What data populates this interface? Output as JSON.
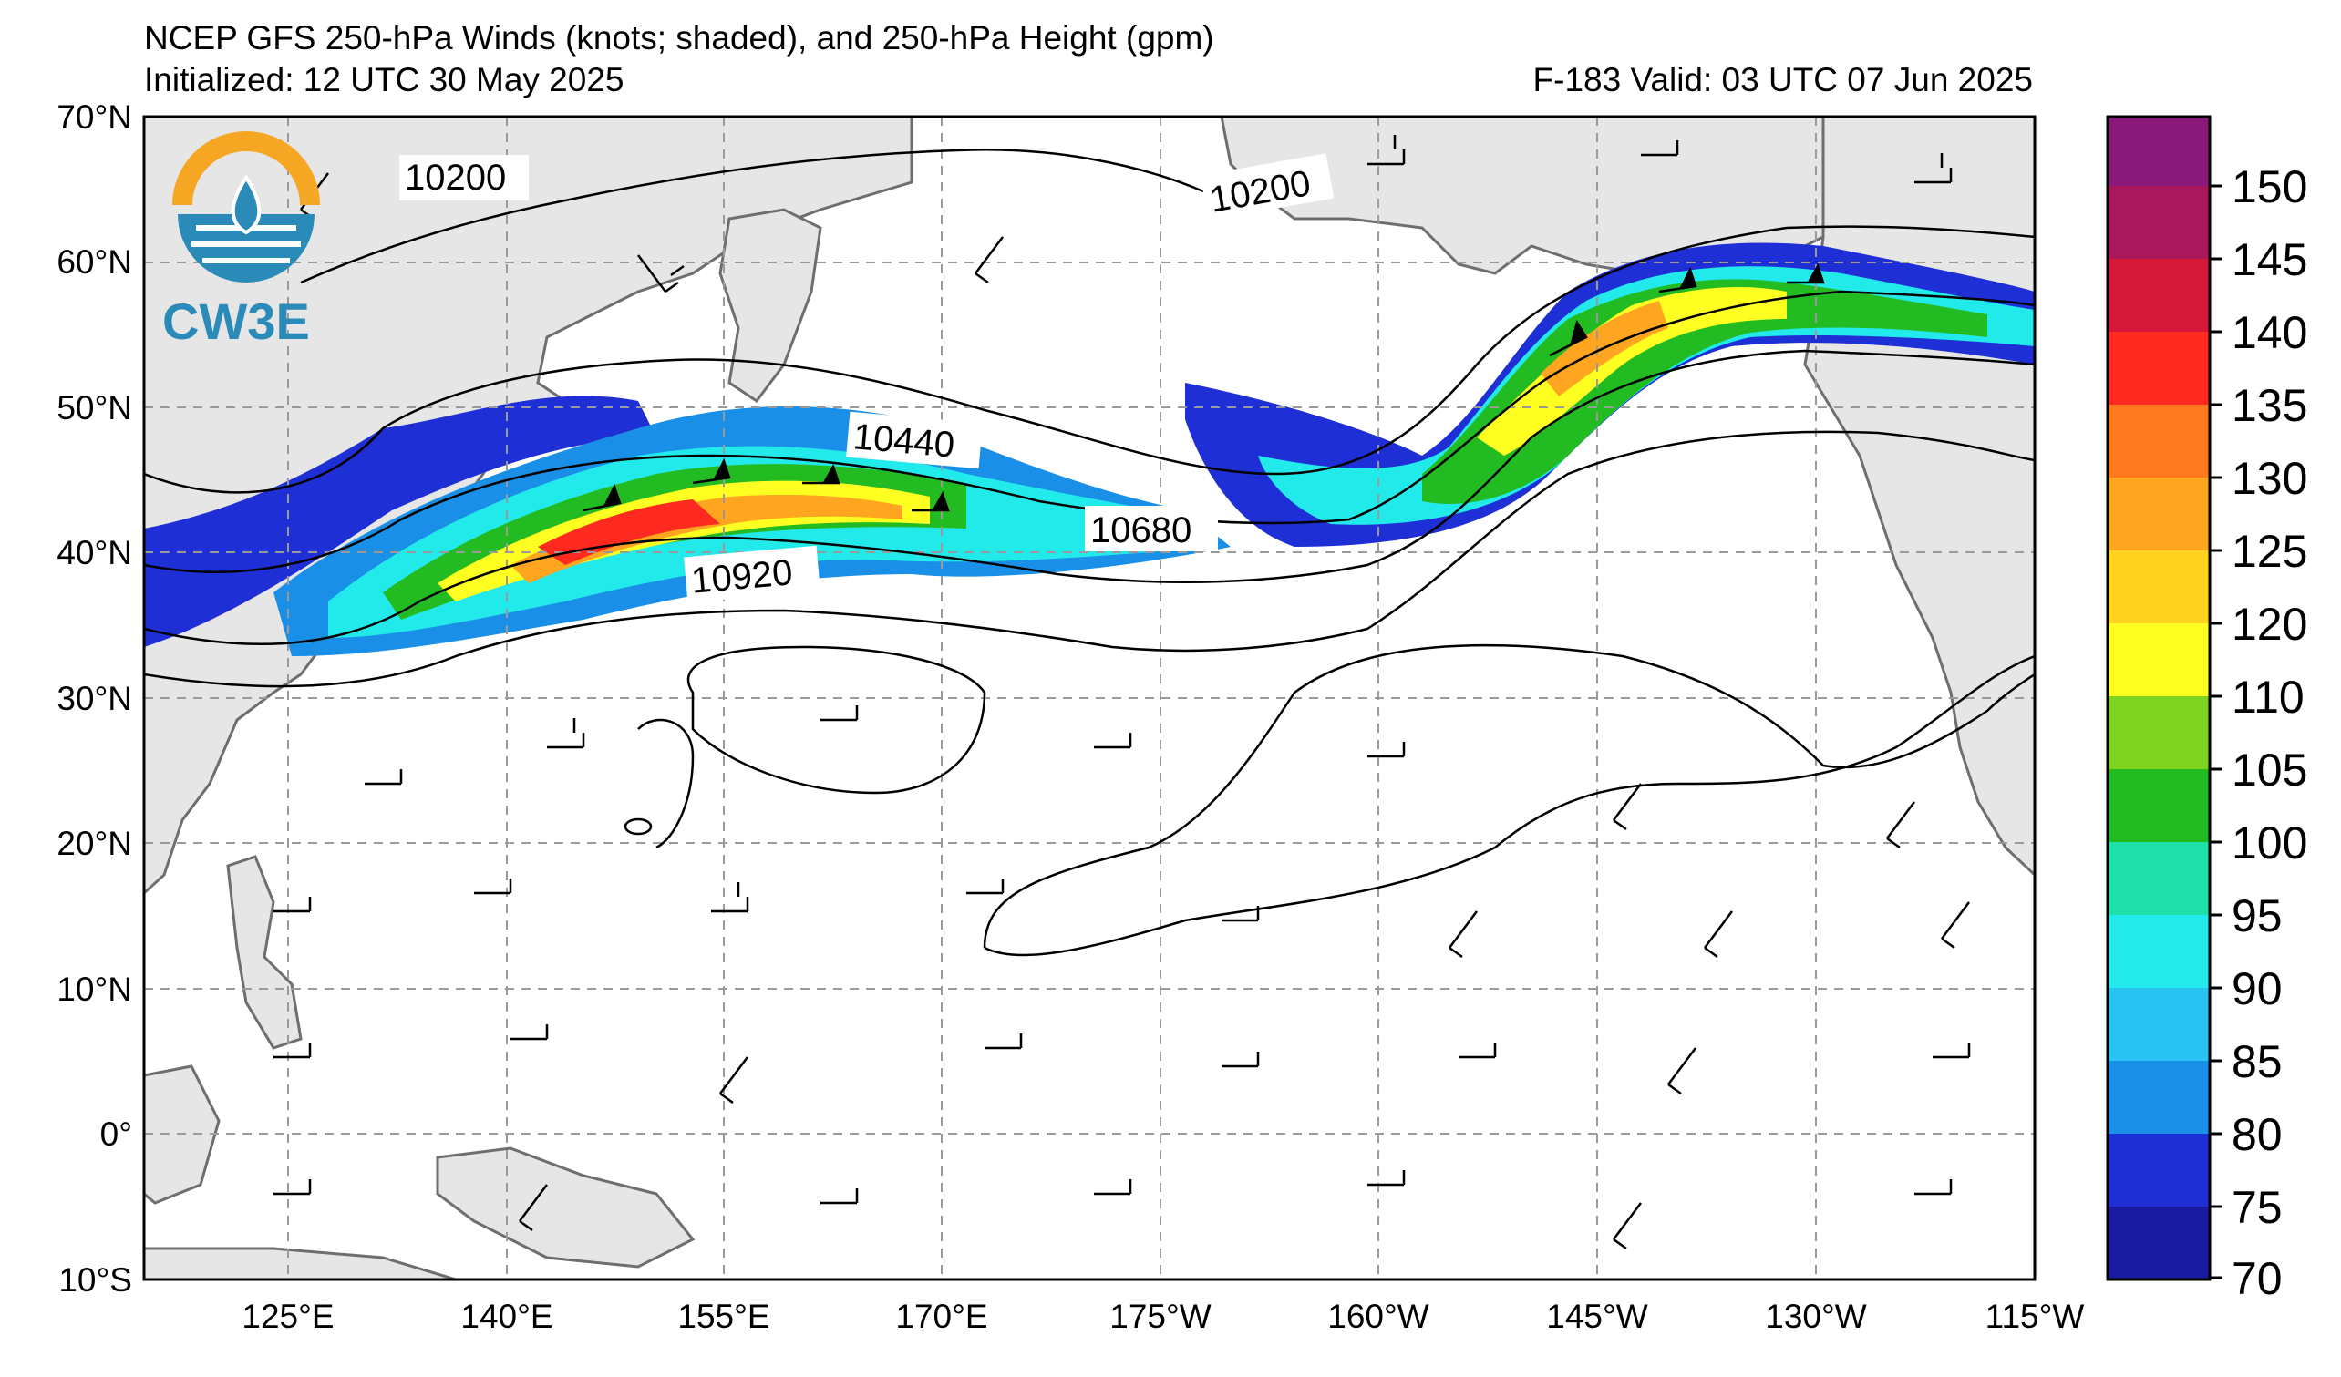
{
  "header": {
    "title": "NCEP GFS 250-hPa Winds (knots; shaded), and 250-hPa Height (gpm)",
    "initialized": "Initialized: 12 UTC 30 May 2025",
    "valid": "F-183  Valid: 03 UTC 07 Jun 2025"
  },
  "logo": {
    "text": "CW3E",
    "colors": {
      "orange": "#f5a623",
      "blue": "#2a8ab8"
    }
  },
  "map": {
    "lat_labels": [
      "70°N",
      "60°N",
      "50°N",
      "40°N",
      "30°N",
      "20°N",
      "10°N",
      "0°",
      "10°S"
    ],
    "lon_labels": [
      "125°E",
      "140°E",
      "155°E",
      "170°E",
      "175°W",
      "160°W",
      "145°W",
      "130°W",
      "115°W"
    ],
    "contour_labels": [
      "10200",
      "10200",
      "10440",
      "10680",
      "10920"
    ],
    "land_color": "#e6e6e6",
    "grid_style": "dashed gray"
  },
  "colorbar": {
    "ticks": [
      "150",
      "145",
      "140",
      "135",
      "130",
      "125",
      "120",
      "110",
      "105",
      "100",
      "95",
      "90",
      "85",
      "80",
      "75",
      "70"
    ],
    "colors": [
      "#1a1aa0",
      "#1f2fd6",
      "#1a8fe8",
      "#28c3f2",
      "#22eaea",
      "#1fe0a8",
      "#22bb22",
      "#7ed321",
      "#ffff22",
      "#ffd21f",
      "#ffa51f",
      "#ff7a1f",
      "#ff2a1f",
      "#d4183a",
      "#a8185a",
      "#8a1a7a"
    ]
  }
}
